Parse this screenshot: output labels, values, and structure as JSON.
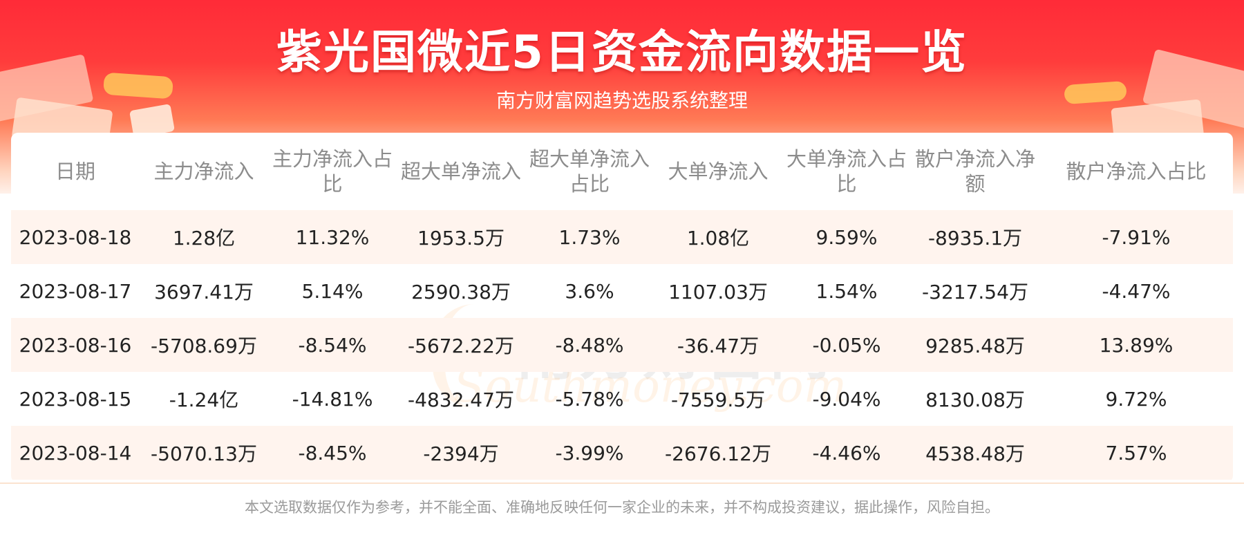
{
  "header": {
    "title": "紫光国微近5日资金流向数据一览",
    "subtitle": "南方财富网趋势选股系统整理"
  },
  "watermark": {
    "cn": "南方财富网",
    "en": "Southmoney.com"
  },
  "table": {
    "columns": [
      "日期",
      "主力净流入",
      "主力净流入占比",
      "超大单净流入",
      "超大单净流入占比",
      "大单净流入",
      "大单净流入占比",
      "散户净流入净额",
      "散户净流入占比"
    ],
    "rows": [
      [
        "2023-08-18",
        "1.28亿",
        "11.32%",
        "1953.5万",
        "1.73%",
        "1.08亿",
        "9.59%",
        "-8935.1万",
        "-7.91%"
      ],
      [
        "2023-08-17",
        "3697.41万",
        "5.14%",
        "2590.38万",
        "3.6%",
        "1107.03万",
        "1.54%",
        "-3217.54万",
        "-4.47%"
      ],
      [
        "2023-08-16",
        "-5708.69万",
        "-8.54%",
        "-5672.22万",
        "-8.48%",
        "-36.47万",
        "-0.05%",
        "9285.48万",
        "13.89%"
      ],
      [
        "2023-08-15",
        "-1.24亿",
        "-14.81%",
        "-4832.47万",
        "-5.78%",
        "-7559.5万",
        "-9.04%",
        "8130.08万",
        "9.72%"
      ],
      [
        "2023-08-14",
        "-5070.13万",
        "-8.45%",
        "-2394万",
        "-3.99%",
        "-2676.12万",
        "-4.46%",
        "4538.48万",
        "7.57%"
      ]
    ]
  },
  "footer": {
    "disclaimer": "本文选取数据仅作为参考，并不能全面、准确地反映任何一家企业的未来，并不构成投资建议，据此操作，风险自担。"
  },
  "colors": {
    "banner_red": "#ff2b38",
    "stripe_row": "#fff4ee",
    "header_text": "#8c8c8c"
  }
}
